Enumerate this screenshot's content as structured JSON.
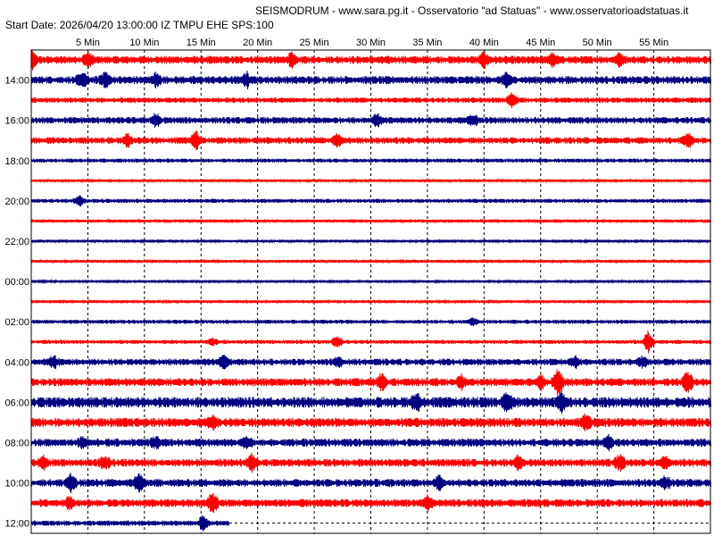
{
  "header": {
    "title": "SEISMODRUM - www.sara.pg.it - Osservatorio \"ad Statuas\" - www.osservatorioadstatuas.it",
    "subtitle": "Start Date: 2026/04/20 13:00:00 IZ TMPU EHE SPS:100"
  },
  "chart_data": {
    "type": "line",
    "title": "SEISMODRUM - www.sara.pg.it - Osservatorio \"ad Statuas\" - www.osservatorioadstatuas.it",
    "subtitle": "Start Date: 2026/04/20 13:00:00 IZ TMPU EHE SPS:100",
    "x_tick_labels": [
      "5 Min",
      "10 Min",
      "15 Min",
      "20 Min",
      "25 Min",
      "30 Min",
      "35 Min",
      "40 Min",
      "45 Min",
      "50 Min",
      "55 Min"
    ],
    "x_ticks_minutes": [
      5,
      10,
      15,
      20,
      25,
      30,
      35,
      40,
      45,
      50,
      55
    ],
    "xlim_minutes": [
      0,
      60
    ],
    "y_tick_labels": [
      "14:00",
      "16:00",
      "18:00",
      "20:00",
      "22:00",
      "00:00",
      "02:00",
      "04:00",
      "06:00",
      "08:00",
      "10:00",
      "12:00"
    ],
    "grid": "dashed vertical lines at each 5 minutes",
    "colors": {
      "red": "#ff0000",
      "blue": "#000080",
      "frame": "#000000",
      "grid": "#000000"
    },
    "traces": [
      {
        "hour": "13:00",
        "color": "red",
        "amp": 3,
        "events": [
          [
            0,
            8
          ],
          [
            5,
            6
          ],
          [
            23,
            5
          ],
          [
            40,
            6
          ],
          [
            46,
            5
          ],
          [
            52,
            6
          ]
        ]
      },
      {
        "hour": "14:00",
        "color": "blue",
        "amp": 3,
        "events": [
          [
            4.5,
            6
          ],
          [
            6.5,
            7
          ],
          [
            11,
            5
          ],
          [
            19,
            6
          ],
          [
            42,
            5
          ]
        ]
      },
      {
        "hour": "15:00",
        "color": "red",
        "amp": 2,
        "events": [
          [
            42.5,
            7
          ]
        ]
      },
      {
        "hour": "16:00",
        "color": "blue",
        "amp": 2.5,
        "events": [
          [
            11,
            5
          ],
          [
            30.5,
            6
          ],
          [
            39,
            5
          ]
        ]
      },
      {
        "hour": "17:00",
        "color": "red",
        "amp": 2.5,
        "events": [
          [
            8.5,
            5
          ],
          [
            14.5,
            8
          ],
          [
            27,
            5
          ],
          [
            58,
            6
          ]
        ]
      },
      {
        "hour": "18:00",
        "color": "blue",
        "amp": 1.5,
        "events": []
      },
      {
        "hour": "19:00",
        "color": "red",
        "amp": 1,
        "events": []
      },
      {
        "hour": "20:00",
        "color": "blue",
        "amp": 1.5,
        "events": [
          [
            4.2,
            6
          ]
        ]
      },
      {
        "hour": "21:00",
        "color": "red",
        "amp": 1,
        "events": []
      },
      {
        "hour": "22:00",
        "color": "blue",
        "amp": 1,
        "events": []
      },
      {
        "hour": "23:00",
        "color": "red",
        "amp": 1,
        "events": []
      },
      {
        "hour": "00:00",
        "color": "blue",
        "amp": 1,
        "events": []
      },
      {
        "hour": "01:00",
        "color": "red",
        "amp": 1,
        "events": []
      },
      {
        "hour": "02:00",
        "color": "blue",
        "amp": 1.5,
        "events": [
          [
            39,
            3
          ]
        ]
      },
      {
        "hour": "03:00",
        "color": "red",
        "amp": 1.5,
        "events": [
          [
            16,
            4
          ],
          [
            27,
            6
          ],
          [
            54.5,
            10
          ]
        ]
      },
      {
        "hour": "04:00",
        "color": "blue",
        "amp": 2.5,
        "events": [
          [
            2,
            5
          ],
          [
            17,
            7
          ],
          [
            27,
            4
          ],
          [
            48,
            5
          ],
          [
            54,
            4
          ]
        ]
      },
      {
        "hour": "05:00",
        "color": "red",
        "amp": 3,
        "events": [
          [
            31,
            8
          ],
          [
            38,
            5
          ],
          [
            45,
            6
          ],
          [
            46.5,
            12
          ],
          [
            58,
            10
          ]
        ]
      },
      {
        "hour": "06:00",
        "color": "blue",
        "amp": 4,
        "events": [
          [
            34,
            6
          ],
          [
            42,
            7
          ],
          [
            46.8,
            9
          ]
        ]
      },
      {
        "hour": "07:00",
        "color": "red",
        "amp": 3.5,
        "events": [
          [
            16,
            5
          ],
          [
            49,
            6
          ]
        ]
      },
      {
        "hour": "08:00",
        "color": "blue",
        "amp": 3,
        "events": [
          [
            4.5,
            5
          ],
          [
            11,
            5
          ],
          [
            19,
            5
          ],
          [
            51,
            6
          ]
        ]
      },
      {
        "hour": "09:00",
        "color": "red",
        "amp": 3,
        "events": [
          [
            1,
            5
          ],
          [
            6.5,
            5
          ],
          [
            19.5,
            7
          ],
          [
            43,
            5
          ],
          [
            52,
            6
          ],
          [
            56,
            5
          ]
        ]
      },
      {
        "hour": "10:00",
        "color": "blue",
        "amp": 3,
        "events": [
          [
            3.5,
            7
          ],
          [
            9.5,
            8
          ],
          [
            36,
            6
          ],
          [
            56,
            5
          ]
        ]
      },
      {
        "hour": "11:00",
        "color": "red",
        "amp": 3,
        "events": [
          [
            3.3,
            5
          ],
          [
            16,
            9
          ],
          [
            35,
            5
          ]
        ]
      },
      {
        "hour": "12:00",
        "color": "blue",
        "amp": 2,
        "end": 17.5,
        "events": [
          [
            15.2,
            7
          ]
        ]
      }
    ]
  }
}
